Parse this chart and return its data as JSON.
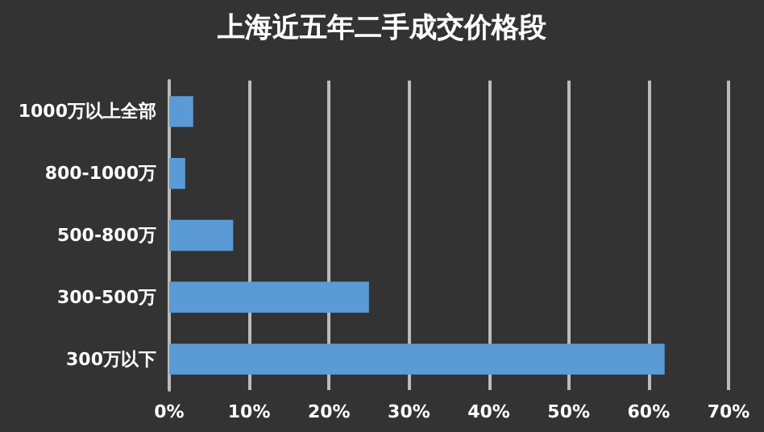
{
  "chart_data": {
    "type": "bar",
    "orientation": "horizontal",
    "title": "上海近五年二手成交价格段",
    "categories": [
      "1000万以上全部",
      "800-1000万",
      "500-800万",
      "300-500万",
      "300万以下"
    ],
    "values": [
      3,
      2,
      8,
      25,
      62
    ],
    "color": "#5b9bd5",
    "xlim": [
      0,
      70
    ],
    "xticks": [
      {
        "value": 0,
        "label": "0%"
      },
      {
        "value": 10,
        "label": "10%"
      },
      {
        "value": 20,
        "label": "20%"
      },
      {
        "value": 30,
        "label": "30%"
      },
      {
        "value": 40,
        "label": "40%"
      },
      {
        "value": 50,
        "label": "50%"
      },
      {
        "value": 60,
        "label": "60%"
      },
      {
        "value": 70,
        "label": "70%"
      }
    ],
    "grid": "x"
  }
}
